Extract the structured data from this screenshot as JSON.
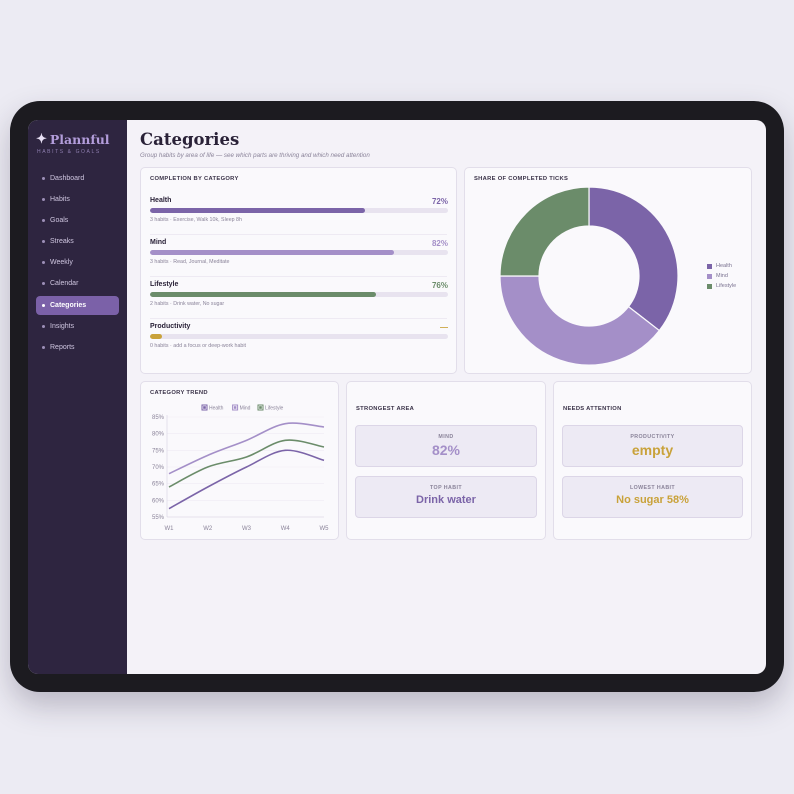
{
  "brand": {
    "name": "Plannful",
    "tagline": "HABITS & GOALS",
    "star_icon": "sparkle-icon"
  },
  "nav": [
    {
      "label": "Dashboard",
      "active": false
    },
    {
      "label": "Habits",
      "active": false
    },
    {
      "label": "Goals",
      "active": false
    },
    {
      "label": "Streaks",
      "active": false
    },
    {
      "label": "Weekly",
      "active": false
    },
    {
      "label": "Calendar",
      "active": false
    },
    {
      "label": "Categories",
      "active": true
    },
    {
      "label": "Insights",
      "active": false
    },
    {
      "label": "Reports",
      "active": false
    }
  ],
  "page": {
    "title": "Categories",
    "subtitle": "Group habits by area of life — see which parts are thriving and which need attention"
  },
  "completion": {
    "title": "COMPLETION BY CATEGORY",
    "categories": [
      {
        "name": "Health",
        "pct_label": "72%",
        "fraction": 0.72,
        "color": "#7b64a8",
        "detail": "3 habits · Exercise, Walk 10k, Sleep 8h"
      },
      {
        "name": "Mind",
        "pct_label": "82%",
        "fraction": 0.82,
        "color": "#a48fc8",
        "detail": "3 habits · Read, Journal, Meditate"
      },
      {
        "name": "Lifestyle",
        "pct_label": "76%",
        "fraction": 0.76,
        "color": "#6b8c6a",
        "detail": "2 habits · Drink water, No sugar"
      },
      {
        "name": "Productivity",
        "pct_label": "—",
        "fraction": 0.04,
        "color": "#c9a23a",
        "detail": "0 habits · add a focus or deep-work habit"
      }
    ]
  },
  "share": {
    "title": "SHARE OF COMPLETED TICKS",
    "slices": [
      {
        "name": "Health",
        "value": 0.355,
        "color": "#7b64a8"
      },
      {
        "name": "Mind",
        "value": 0.395,
        "color": "#a48fc8"
      },
      {
        "name": "Lifestyle",
        "value": 0.25,
        "color": "#6b8c6a"
      }
    ]
  },
  "trend": {
    "title": "CATEGORY TREND",
    "chart_data": {
      "type": "line",
      "x": [
        "W1",
        "W2",
        "W3",
        "W4",
        "W5"
      ],
      "yticks": [
        "85%",
        "80%",
        "75%",
        "70%",
        "65%",
        "60%",
        "55%"
      ],
      "ylim": [
        55,
        85
      ],
      "series": [
        {
          "name": "Health",
          "color": "#7b64a8",
          "values": [
            57.5,
            64,
            70,
            75,
            72
          ]
        },
        {
          "name": "Mind",
          "color": "#a48fc8",
          "values": [
            68,
            73.5,
            78,
            83,
            82
          ]
        },
        {
          "name": "Lifestyle",
          "color": "#6b8c6a",
          "values": [
            64,
            70,
            73,
            78,
            76
          ]
        }
      ]
    }
  },
  "strongest": {
    "title": "STRONGEST AREA",
    "area_label": "MIND",
    "area_value": "82%",
    "habit_label": "TOP HABIT",
    "habit_value": "Drink water",
    "color": "#7b64a8"
  },
  "attention": {
    "title": "NEEDS ATTENTION",
    "area_label": "PRODUCTIVITY",
    "area_value": "empty",
    "habit_label": "LOWEST HABIT",
    "habit_value": "No sugar 58%",
    "color": "#c9a23a"
  }
}
